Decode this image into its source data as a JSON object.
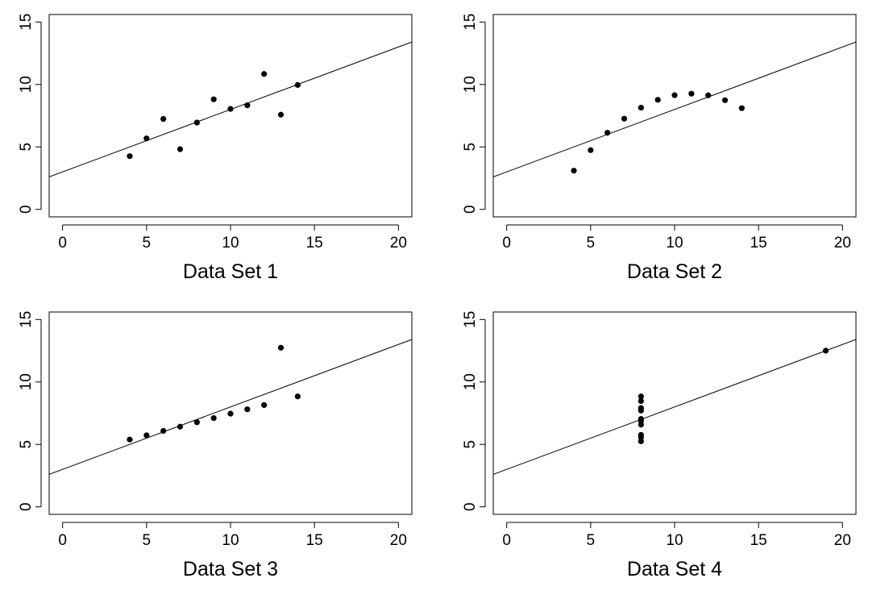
{
  "chart_data": [
    {
      "type": "scatter",
      "xlabel": "Data Set 1",
      "xlim": [
        -0.8,
        20.8
      ],
      "ylim": [
        -0.6,
        15.6
      ],
      "xticks": [
        "0",
        "5",
        "10",
        "15",
        "20"
      ],
      "yticks": [
        "0",
        "5",
        "10",
        "15"
      ],
      "regression_line": {
        "intercept": 3.0,
        "slope": 0.5
      },
      "x": [
        4,
        5,
        6,
        7,
        8,
        9,
        10,
        11,
        12,
        13,
        14
      ],
      "y": [
        4.26,
        5.68,
        7.24,
        4.82,
        6.95,
        8.81,
        8.04,
        8.33,
        10.84,
        7.58,
        9.96
      ]
    },
    {
      "type": "scatter",
      "xlabel": "Data Set 2",
      "xlim": [
        -0.8,
        20.8
      ],
      "ylim": [
        -0.6,
        15.6
      ],
      "xticks": [
        "0",
        "5",
        "10",
        "15",
        "20"
      ],
      "yticks": [
        "0",
        "5",
        "10",
        "15"
      ],
      "regression_line": {
        "intercept": 3.0,
        "slope": 0.5
      },
      "x": [
        4,
        5,
        6,
        7,
        8,
        9,
        10,
        11,
        12,
        13,
        14
      ],
      "y": [
        3.1,
        4.74,
        6.13,
        7.26,
        8.14,
        8.77,
        9.14,
        9.26,
        9.13,
        8.74,
        8.1
      ]
    },
    {
      "type": "scatter",
      "xlabel": "Data Set 3",
      "xlim": [
        -0.8,
        20.8
      ],
      "ylim": [
        -0.6,
        15.6
      ],
      "xticks": [
        "0",
        "5",
        "10",
        "15",
        "20"
      ],
      "yticks": [
        "0",
        "5",
        "10",
        "15"
      ],
      "regression_line": {
        "intercept": 3.0,
        "slope": 0.5
      },
      "x": [
        4,
        5,
        6,
        7,
        8,
        9,
        10,
        11,
        12,
        13,
        14
      ],
      "y": [
        5.39,
        5.73,
        6.08,
        6.42,
        6.77,
        7.11,
        7.46,
        7.81,
        8.15,
        12.74,
        8.84
      ]
    },
    {
      "type": "scatter",
      "xlabel": "Data Set 4",
      "xlim": [
        -0.8,
        20.8
      ],
      "ylim": [
        -0.6,
        15.6
      ],
      "xticks": [
        "0",
        "5",
        "10",
        "15",
        "20"
      ],
      "yticks": [
        "0",
        "5",
        "10",
        "15"
      ],
      "regression_line": {
        "intercept": 3.0,
        "slope": 0.5
      },
      "x": [
        8,
        8,
        8,
        8,
        8,
        8,
        8,
        19,
        8,
        8,
        8
      ],
      "y": [
        6.58,
        5.76,
        7.71,
        8.84,
        8.47,
        7.04,
        5.25,
        12.5,
        5.56,
        7.91,
        6.89
      ]
    }
  ]
}
